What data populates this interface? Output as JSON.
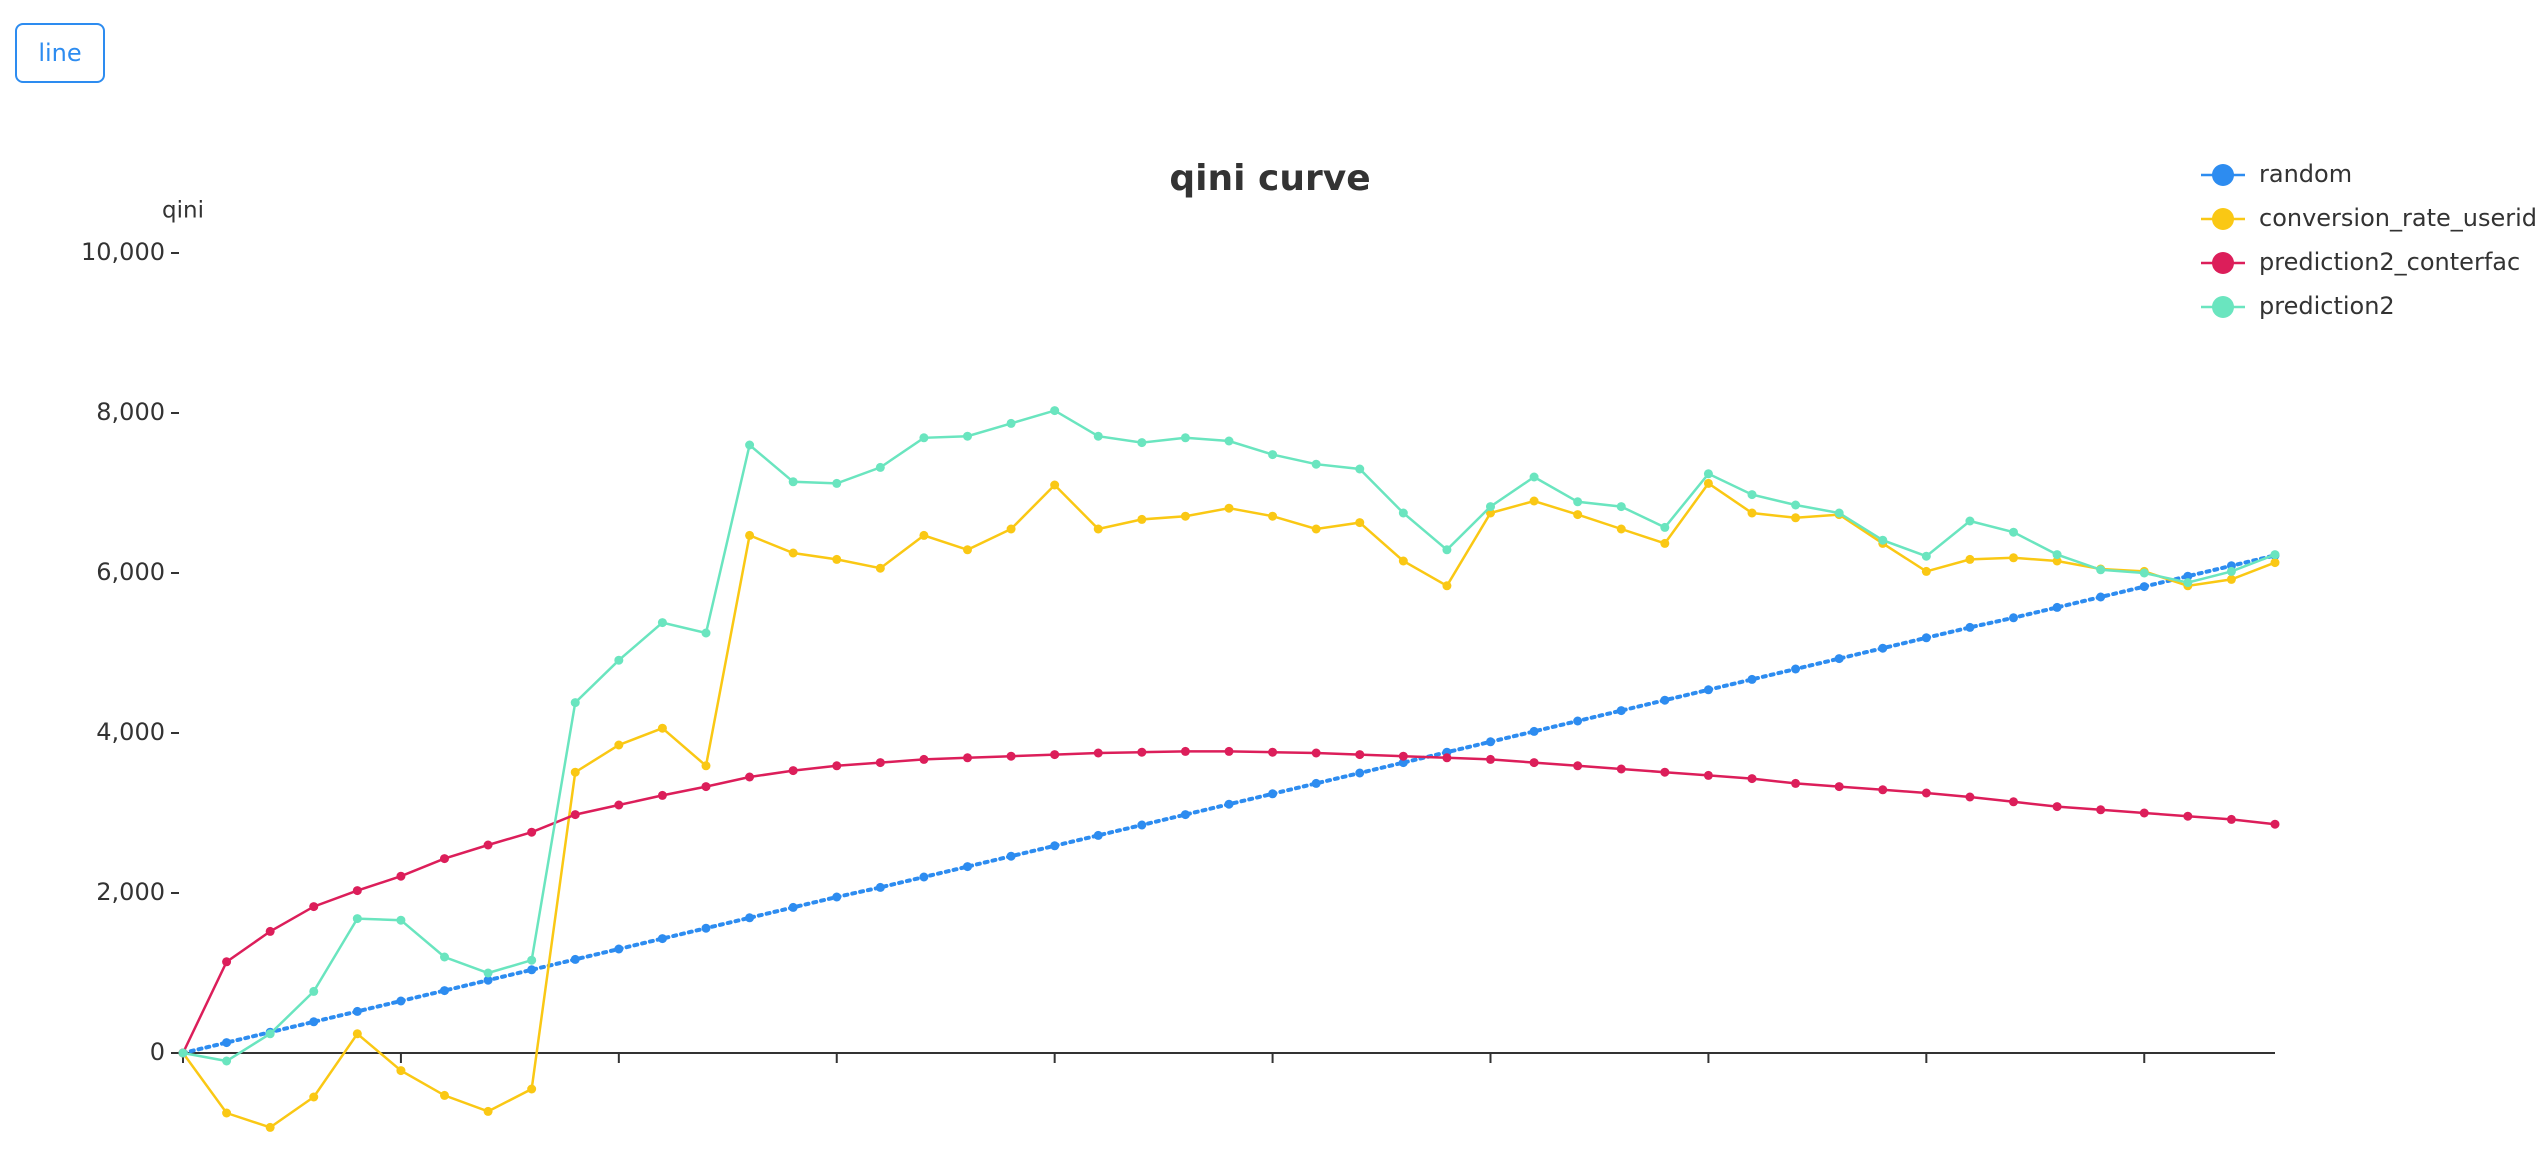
{
  "button": "line",
  "chart_data": {
    "type": "line",
    "title": "qini curve",
    "y_label": "qini",
    "legend": "top-right",
    "categories": [
      null,
      null,
      null,
      null,
      null,
      null,
      null,
      null,
      null,
      null,
      null,
      null,
      null,
      null,
      null,
      null,
      null,
      null,
      null,
      null,
      null,
      null,
      null,
      null,
      null,
      null,
      null,
      null,
      null,
      null,
      null,
      null,
      null,
      null,
      null,
      null,
      null,
      null,
      null,
      null,
      null,
      null,
      null,
      null,
      null,
      null,
      null,
      null,
      null
    ],
    "ylim": [
      -1200,
      10000
    ],
    "yticks": [
      0,
      {
        "value": 2000,
        "label": "2,000"
      },
      {
        "value": 4000,
        "label": "4,000"
      },
      {
        "value": 6000,
        "label": "6,000"
      },
      {
        "value": 8000,
        "label": "8,000"
      },
      {
        "value": 10000,
        "label": "10,000"
      }
    ],
    "series": [
      {
        "name": "random",
        "color": "#2d8cf0",
        "dashed": true,
        "values": [
          0,
          130,
          260,
          390,
          520,
          650,
          780,
          910,
          1040,
          1170,
          1300,
          1430,
          1560,
          1690,
          1820,
          1950,
          2070,
          2200,
          2330,
          2460,
          2590,
          2720,
          2850,
          2980,
          3110,
          3240,
          3370,
          3500,
          3630,
          3760,
          3890,
          4020,
          4150,
          4280,
          4410,
          4540,
          4670,
          4800,
          4930,
          5060,
          5190,
          5320,
          5440,
          5570,
          5700,
          5830,
          5960,
          6090,
          6220
        ]
      },
      {
        "name": "conversion_rate_userid",
        "color": "#fac814",
        "values": [
          0,
          -750,
          -930,
          -550,
          240,
          -220,
          -530,
          -730,
          -450,
          3510,
          3850,
          4060,
          3590,
          6470,
          6250,
          6170,
          6060,
          6470,
          6290,
          6550,
          7100,
          6550,
          6670,
          6710,
          6810,
          6710,
          6550,
          6630,
          6150,
          5840,
          6750,
          6900,
          6730,
          6550,
          6370,
          7120,
          6750,
          6690,
          6730,
          6370,
          6020,
          6170,
          6190,
          6150,
          6050,
          6020,
          5840,
          5920,
          6130
        ]
      },
      {
        "name": "prediction2_conterfac",
        "color": "#dc1e5a",
        "values": [
          0,
          1140,
          1520,
          1830,
          2030,
          2210,
          2430,
          2600,
          2760,
          2980,
          3100,
          3220,
          3330,
          3450,
          3530,
          3590,
          3630,
          3670,
          3690,
          3710,
          3730,
          3750,
          3760,
          3770,
          3770,
          3760,
          3750,
          3730,
          3710,
          3690,
          3670,
          3630,
          3590,
          3550,
          3510,
          3470,
          3430,
          3370,
          3330,
          3290,
          3250,
          3200,
          3140,
          3080,
          3040,
          3000,
          2960,
          2920,
          2860
        ]
      },
      {
        "name": "prediction2",
        "color": "#6ae5bf",
        "values": [
          0,
          -100,
          240,
          770,
          1680,
          1660,
          1200,
          1000,
          1160,
          4380,
          4910,
          5380,
          5250,
          7600,
          7140,
          7120,
          7320,
          7690,
          7710,
          7870,
          8030,
          7710,
          7630,
          7690,
          7650,
          7480,
          7360,
          7300,
          6750,
          6290,
          6830,
          7200,
          6890,
          6830,
          6570,
          7240,
          6980,
          6850,
          6750,
          6410,
          6210,
          6650,
          6510,
          6230,
          6040,
          6000,
          5880,
          6020,
          6230
        ]
      }
    ]
  }
}
